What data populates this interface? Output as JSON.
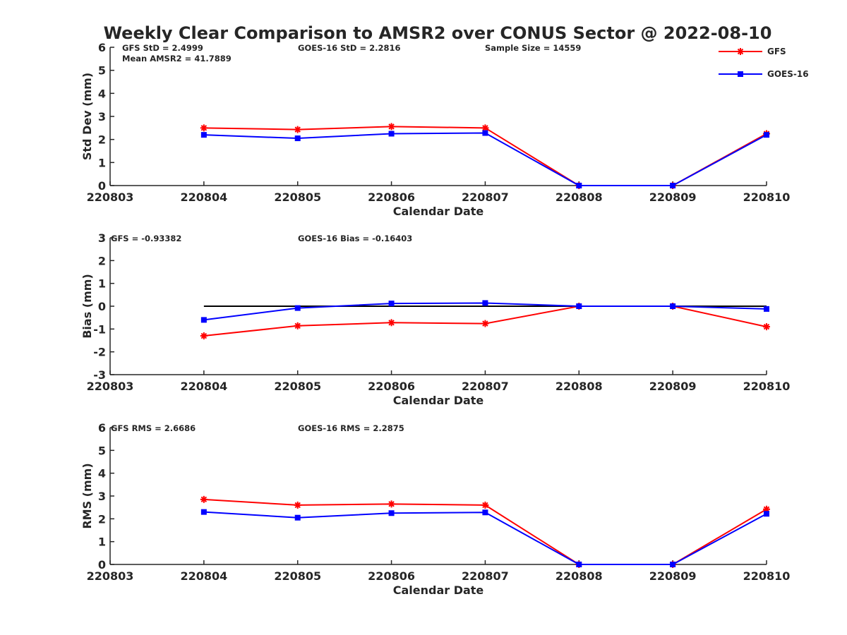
{
  "figure": {
    "title": "Weekly Clear Comparison to AMSR2 over CONUS Sector @ 2022-08-10"
  },
  "legend": {
    "placement": "top-right",
    "items": [
      {
        "name": "GFS",
        "color": "#ff0000",
        "marker": "asterisk"
      },
      {
        "name": "GOES-16",
        "color": "#0000ff",
        "marker": "square"
      }
    ]
  },
  "chart_data": [
    {
      "type": "line",
      "xlabel": "Calendar Date",
      "ylabel": "Std Dev (mm)",
      "categories": [
        "220803",
        "220804",
        "220805",
        "220806",
        "220807",
        "220808",
        "220809",
        "220810"
      ],
      "ylim": [
        0,
        6
      ],
      "yticks": [
        "0",
        "1",
        "2",
        "3",
        "4",
        "5",
        "6"
      ],
      "annotations": [
        "GFS StD = 2.4999",
        "GOES-16 StD = 2.2816",
        "Sample Size = 14559",
        "Mean AMSR2 = 41.7889"
      ],
      "series": [
        {
          "name": "GFS",
          "values": [
            null,
            2.5,
            2.43,
            2.56,
            2.5,
            0.0,
            0.0,
            2.25
          ]
        },
        {
          "name": "GOES-16",
          "values": [
            null,
            2.2,
            2.05,
            2.25,
            2.28,
            0.0,
            0.0,
            2.2
          ]
        }
      ],
      "reference_line": null
    },
    {
      "type": "line",
      "xlabel": "Calendar Date",
      "ylabel": "Bias (mm)",
      "categories": [
        "220803",
        "220804",
        "220805",
        "220806",
        "220807",
        "220808",
        "220809",
        "220810"
      ],
      "ylim": [
        -3,
        3
      ],
      "yticks": [
        "-3",
        "-2",
        "-1",
        "0",
        "1",
        "2",
        "3"
      ],
      "annotations": [
        "GFS = -0.93382",
        "GOES-16 Bias  = -0.16403"
      ],
      "series": [
        {
          "name": "GFS",
          "values": [
            null,
            -1.3,
            -0.86,
            -0.72,
            -0.76,
            0.0,
            0.0,
            -0.9
          ]
        },
        {
          "name": "GOES-16",
          "values": [
            null,
            -0.6,
            -0.08,
            0.12,
            0.14,
            0.0,
            0.0,
            -0.12
          ]
        }
      ],
      "reference_line": {
        "y": 0,
        "x_from": "220804",
        "x_to": "220810",
        "color": "#000000"
      }
    },
    {
      "type": "line",
      "xlabel": "Calendar Date",
      "ylabel": "RMS (mm)",
      "categories": [
        "220803",
        "220804",
        "220805",
        "220806",
        "220807",
        "220808",
        "220809",
        "220810"
      ],
      "ylim": [
        0,
        6
      ],
      "yticks": [
        "0",
        "1",
        "2",
        "3",
        "4",
        "5",
        "6"
      ],
      "annotations": [
        "GFS RMS = 2.6686",
        "GOES-16 RMS = 2.2875"
      ],
      "series": [
        {
          "name": "GFS",
          "values": [
            null,
            2.85,
            2.6,
            2.65,
            2.6,
            0.0,
            0.0,
            2.42
          ]
        },
        {
          "name": "GOES-16",
          "values": [
            null,
            2.3,
            2.05,
            2.25,
            2.28,
            0.0,
            0.0,
            2.22
          ]
        }
      ],
      "reference_line": null
    }
  ]
}
